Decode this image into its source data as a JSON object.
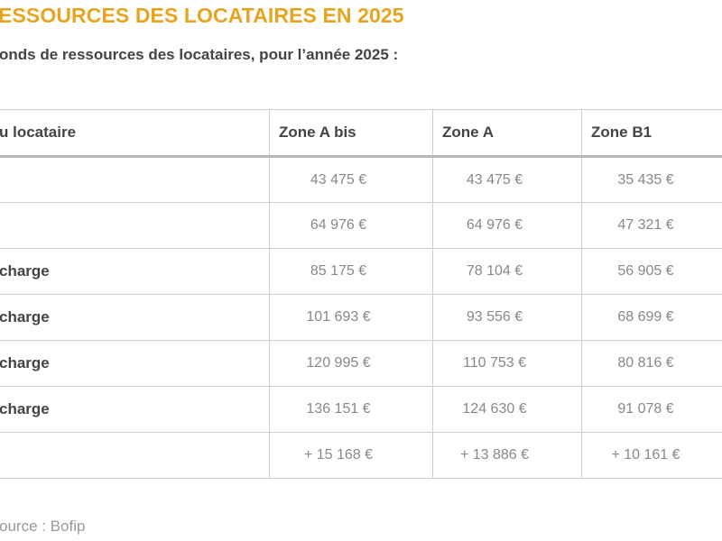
{
  "page": {
    "title": "ESSOURCES DES LOCATAIRES EN 2025",
    "intro": "onds de ressources des locataires, pour l’année 2025 :"
  },
  "table": {
    "headers": [
      "u locataire",
      "Zone A bis",
      "Zone A",
      "Zone B1"
    ],
    "rows": [
      {
        "label": "",
        "values": [
          "43 475 €",
          "43 475 €",
          "35 435 €"
        ]
      },
      {
        "label": "",
        "values": [
          "64 976 €",
          "64 976 €",
          "47 321 €"
        ]
      },
      {
        "label": "charge",
        "values": [
          "85 175 €",
          "78 104 €",
          "56 905 €"
        ]
      },
      {
        "label": "charge",
        "values": [
          "101 693 €",
          "93 556 €",
          "68 699 €"
        ]
      },
      {
        "label": "charge",
        "values": [
          "120 995 €",
          "110 753 €",
          "80 816 €"
        ]
      },
      {
        "label": "charge",
        "values": [
          "136 151 €",
          "124 630 €",
          "91 078 €"
        ]
      },
      {
        "label": "",
        "values": [
          "+ 15 168 €",
          "+ 13 886 €",
          "+ 10 161 €"
        ]
      }
    ]
  },
  "source": "ource : Bofip"
}
